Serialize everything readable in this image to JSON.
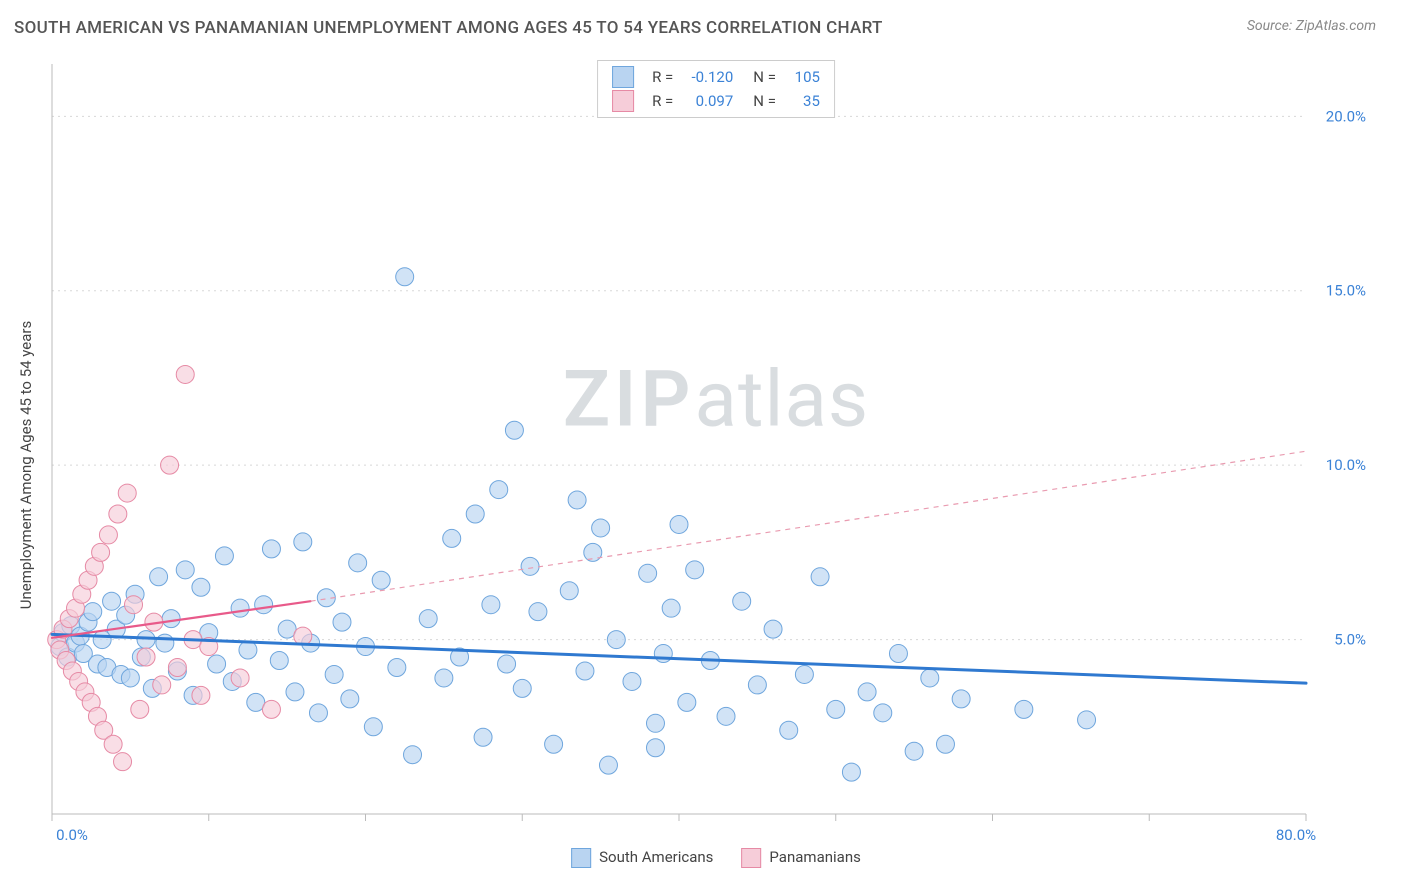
{
  "header": {
    "title": "SOUTH AMERICAN VS PANAMANIAN UNEMPLOYMENT AMONG AGES 45 TO 54 YEARS CORRELATION CHART",
    "source": "Source: ZipAtlas.com"
  },
  "watermark": {
    "bold": "ZIP",
    "light": "atlas"
  },
  "chart": {
    "type": "scatter",
    "ylabel": "Unemployment Among Ages 45 to 54 years",
    "background_color": "#ffffff",
    "grid_color": "#d8d8d8",
    "axis_color": "#bbbbbb",
    "tick_color": "#3b82d6",
    "xlim": [
      0,
      80
    ],
    "ylim": [
      0,
      21.5
    ],
    "x_tick_step": 10,
    "y_tick_step": 5,
    "y_tick_labels": [
      "5.0%",
      "10.0%",
      "15.0%",
      "20.0%"
    ],
    "x_start_label": "0.0%",
    "x_end_label": "80.0%",
    "marker_radius": 9,
    "marker_stroke_width": 1,
    "series": [
      {
        "name": "South Americans",
        "color_fill": "#b9d4f1",
        "color_stroke": "#6fa6dd",
        "swatch_fill": "#b9d4f1",
        "swatch_border": "#6fa6dd",
        "r": "-0.120",
        "n": "105",
        "trend": {
          "x1": 0,
          "y1": 5.15,
          "x2": 80,
          "y2": 3.75,
          "color": "#2f79d0",
          "width": 3,
          "dash": null
        },
        "points": [
          [
            0.5,
            4.8
          ],
          [
            0.7,
            5.2
          ],
          [
            1,
            4.5
          ],
          [
            1.2,
            5.4
          ],
          [
            1.5,
            4.9
          ],
          [
            1.8,
            5.1
          ],
          [
            2,
            4.6
          ],
          [
            2.3,
            5.5
          ],
          [
            2.6,
            5.8
          ],
          [
            2.9,
            4.3
          ],
          [
            3.2,
            5.0
          ],
          [
            3.5,
            4.2
          ],
          [
            3.8,
            6.1
          ],
          [
            4.1,
            5.3
          ],
          [
            4.4,
            4.0
          ],
          [
            4.7,
            5.7
          ],
          [
            5.0,
            3.9
          ],
          [
            5.3,
            6.3
          ],
          [
            5.7,
            4.5
          ],
          [
            6.0,
            5.0
          ],
          [
            6.4,
            3.6
          ],
          [
            6.8,
            6.8
          ],
          [
            7.2,
            4.9
          ],
          [
            7.6,
            5.6
          ],
          [
            8.0,
            4.1
          ],
          [
            8.5,
            7.0
          ],
          [
            9.0,
            3.4
          ],
          [
            9.5,
            6.5
          ],
          [
            10.0,
            5.2
          ],
          [
            10.5,
            4.3
          ],
          [
            11.0,
            7.4
          ],
          [
            11.5,
            3.8
          ],
          [
            12.0,
            5.9
          ],
          [
            12.5,
            4.7
          ],
          [
            13.0,
            3.2
          ],
          [
            13.5,
            6.0
          ],
          [
            14.0,
            7.6
          ],
          [
            14.5,
            4.4
          ],
          [
            15.0,
            5.3
          ],
          [
            15.5,
            3.5
          ],
          [
            16.0,
            7.8
          ],
          [
            16.5,
            4.9
          ],
          [
            17.0,
            2.9
          ],
          [
            17.5,
            6.2
          ],
          [
            18.0,
            4.0
          ],
          [
            18.5,
            5.5
          ],
          [
            19.0,
            3.3
          ],
          [
            19.5,
            7.2
          ],
          [
            20.0,
            4.8
          ],
          [
            20.5,
            2.5
          ],
          [
            21.0,
            6.7
          ],
          [
            22.0,
            4.2
          ],
          [
            22.5,
            15.4
          ],
          [
            23.0,
            1.7
          ],
          [
            24.0,
            5.6
          ],
          [
            25.0,
            3.9
          ],
          [
            25.5,
            7.9
          ],
          [
            26.0,
            4.5
          ],
          [
            27.0,
            8.6
          ],
          [
            27.5,
            2.2
          ],
          [
            28.0,
            6.0
          ],
          [
            28.5,
            9.3
          ],
          [
            29.0,
            4.3
          ],
          [
            29.5,
            11.0
          ],
          [
            30.0,
            3.6
          ],
          [
            30.5,
            7.1
          ],
          [
            31.0,
            5.8
          ],
          [
            32.0,
            2.0
          ],
          [
            33.0,
            6.4
          ],
          [
            33.5,
            9.0
          ],
          [
            34.0,
            4.1
          ],
          [
            34.5,
            7.5
          ],
          [
            35.0,
            8.2
          ],
          [
            35.5,
            1.4
          ],
          [
            36.0,
            5.0
          ],
          [
            37.0,
            3.8
          ],
          [
            38.0,
            6.9
          ],
          [
            38.5,
            2.6
          ],
          [
            39.0,
            4.6
          ],
          [
            40.0,
            8.3
          ],
          [
            38.5,
            1.9
          ],
          [
            39.5,
            5.9
          ],
          [
            40.5,
            3.2
          ],
          [
            41.0,
            7.0
          ],
          [
            42.0,
            4.4
          ],
          [
            43.0,
            2.8
          ],
          [
            44.0,
            6.1
          ],
          [
            45.0,
            3.7
          ],
          [
            46.0,
            5.3
          ],
          [
            47.0,
            2.4
          ],
          [
            48.0,
            4.0
          ],
          [
            49.0,
            6.8
          ],
          [
            50.0,
            3.0
          ],
          [
            51.0,
            1.2
          ],
          [
            52.0,
            3.5
          ],
          [
            53.0,
            2.9
          ],
          [
            54.0,
            4.6
          ],
          [
            55.0,
            1.8
          ],
          [
            56.0,
            3.9
          ],
          [
            57.0,
            2.0
          ],
          [
            58.0,
            3.3
          ],
          [
            62.0,
            3.0
          ],
          [
            66.0,
            2.7
          ]
        ]
      },
      {
        "name": "Panamanians",
        "color_fill": "#f6cdd9",
        "color_stroke": "#e68aa5",
        "swatch_fill": "#f6cdd9",
        "swatch_border": "#e68aa5",
        "r": "0.097",
        "n": "35",
        "trend": {
          "x1": 0,
          "y1": 5.05,
          "x2": 16.5,
          "y2": 6.1,
          "color": "#e85a8a",
          "width": 2.2,
          "dash": null
        },
        "trend_ext": {
          "x1": 16.5,
          "y1": 6.1,
          "x2": 80,
          "y2": 10.4,
          "color": "#e99bb0",
          "width": 1.2,
          "dash": "5 5"
        },
        "points": [
          [
            0.3,
            5.0
          ],
          [
            0.5,
            4.7
          ],
          [
            0.7,
            5.3
          ],
          [
            0.9,
            4.4
          ],
          [
            1.1,
            5.6
          ],
          [
            1.3,
            4.1
          ],
          [
            1.5,
            5.9
          ],
          [
            1.7,
            3.8
          ],
          [
            1.9,
            6.3
          ],
          [
            2.1,
            3.5
          ],
          [
            2.3,
            6.7
          ],
          [
            2.5,
            3.2
          ],
          [
            2.7,
            7.1
          ],
          [
            2.9,
            2.8
          ],
          [
            3.1,
            7.5
          ],
          [
            3.3,
            2.4
          ],
          [
            3.6,
            8.0
          ],
          [
            3.9,
            2.0
          ],
          [
            4.2,
            8.6
          ],
          [
            4.5,
            1.5
          ],
          [
            4.8,
            9.2
          ],
          [
            5.2,
            6.0
          ],
          [
            5.6,
            3.0
          ],
          [
            6.0,
            4.5
          ],
          [
            6.5,
            5.5
          ],
          [
            7.0,
            3.7
          ],
          [
            7.5,
            10.0
          ],
          [
            8.0,
            4.2
          ],
          [
            8.5,
            12.6
          ],
          [
            9.0,
            5.0
          ],
          [
            9.5,
            3.4
          ],
          [
            10.0,
            4.8
          ],
          [
            12.0,
            3.9
          ],
          [
            14.0,
            3.0
          ],
          [
            16.0,
            5.1
          ]
        ]
      }
    ],
    "bottom_legend": [
      {
        "label": "South Americans",
        "fill": "#b9d4f1",
        "border": "#6fa6dd"
      },
      {
        "label": "Panamanians",
        "fill": "#f6cdd9",
        "border": "#e68aa5"
      }
    ]
  }
}
